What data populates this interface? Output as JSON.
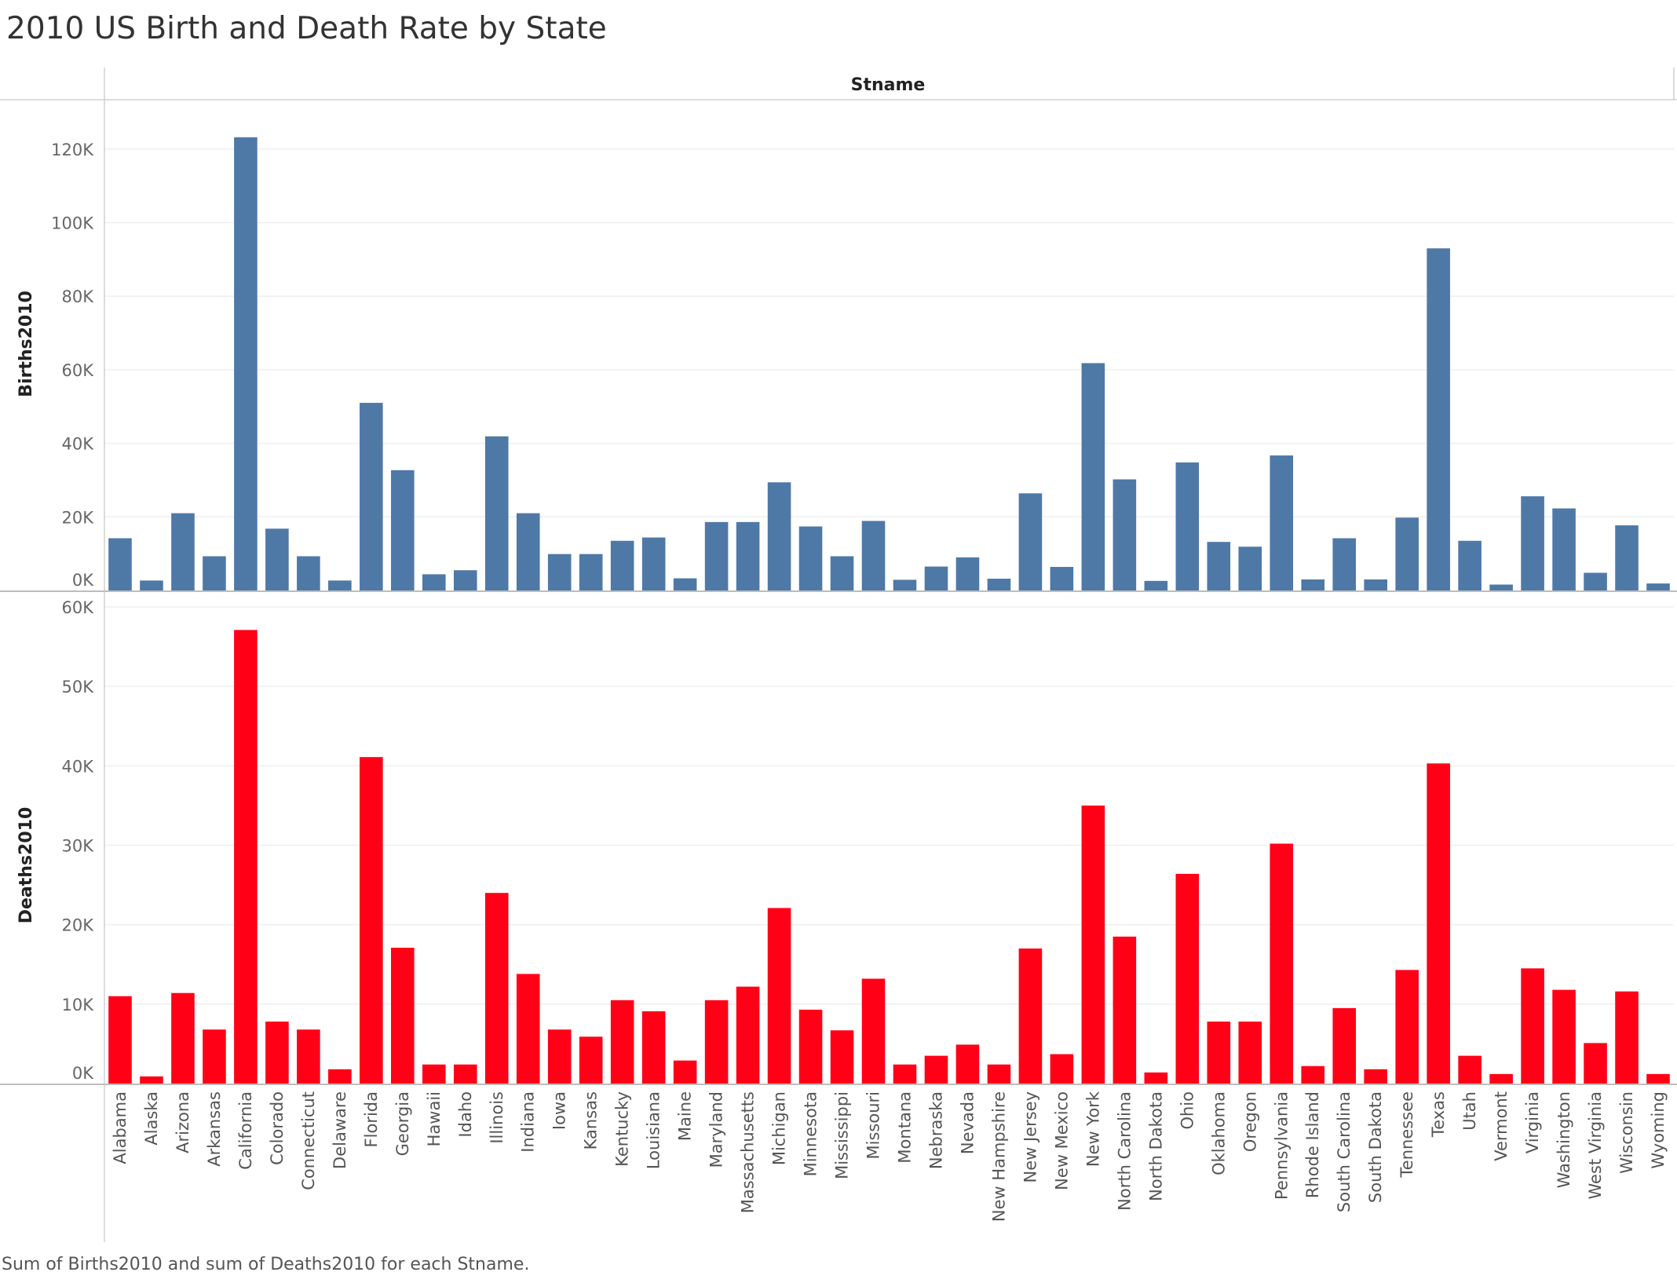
{
  "title": "2010 US Birth and Death Rate by State",
  "caption": "Sum of Births2010 and sum of Deaths2010 for each Stname.",
  "colors": {
    "births": "#4e79a7",
    "deaths": "#ff0017"
  },
  "chart_data": {
    "type": "bar",
    "column_header": "Stname",
    "categories": [
      "Alabama",
      "Alaska",
      "Arizona",
      "Arkansas",
      "California",
      "Colorado",
      "Connecticut",
      "Delaware",
      "Florida",
      "Georgia",
      "Hawaii",
      "Idaho",
      "Illinois",
      "Indiana",
      "Iowa",
      "Kansas",
      "Kentucky",
      "Louisiana",
      "Maine",
      "Maryland",
      "Massachusetts",
      "Michigan",
      "Minnesota",
      "Mississippi",
      "Missouri",
      "Montana",
      "Nebraska",
      "Nevada",
      "New Hampshire",
      "New Jersey",
      "New Mexico",
      "New York",
      "North Carolina",
      "North Dakota",
      "Ohio",
      "Oklahoma",
      "Oregon",
      "Pennsylvania",
      "Rhode Island",
      "South Carolina",
      "South Dakota",
      "Tennessee",
      "Texas",
      "Utah",
      "Vermont",
      "Virginia",
      "Washington",
      "West Virginia",
      "Wisconsin",
      "Wyoming"
    ],
    "series": [
      {
        "name": "Births2010",
        "ylabel": "Births2010",
        "ylim": [
          0,
          127000
        ],
        "ticks": [
          0,
          20000,
          40000,
          60000,
          80000,
          100000,
          120000
        ],
        "tick_labels": [
          "0K",
          "20K",
          "40K",
          "60K",
          "80K",
          "100K",
          "120K"
        ],
        "values": [
          14200,
          2700,
          21000,
          9300,
          123200,
          16800,
          9300,
          2700,
          51000,
          32700,
          4400,
          5500,
          41900,
          21000,
          9900,
          9900,
          13500,
          14400,
          3300,
          18600,
          18600,
          29400,
          17400,
          9300,
          18900,
          2900,
          6500,
          9000,
          3200,
          26400,
          6400,
          61800,
          30200,
          2600,
          34800,
          13200,
          11900,
          36700,
          3000,
          14200,
          3000,
          19800,
          93000,
          13500,
          1600,
          25600,
          22300,
          4800,
          17700,
          1900
        ]
      },
      {
        "name": "Deaths2010",
        "ylabel": "Deaths2010",
        "ylim": [
          0,
          60000
        ],
        "ticks": [
          0,
          10000,
          20000,
          30000,
          40000,
          50000,
          60000
        ],
        "tick_labels": [
          "0K",
          "10K",
          "20K",
          "30K",
          "40K",
          "50K",
          "60K"
        ],
        "values": [
          11000,
          900,
          11400,
          6800,
          57100,
          7800,
          6800,
          1800,
          41100,
          17100,
          2400,
          2400,
          24000,
          13800,
          6800,
          5900,
          10500,
          9100,
          2900,
          10500,
          12200,
          22100,
          9300,
          6700,
          13200,
          2400,
          3500,
          4900,
          2400,
          17000,
          3700,
          35000,
          18500,
          1400,
          26400,
          7800,
          7800,
          30200,
          2200,
          9500,
          1800,
          14300,
          40300,
          3500,
          1200,
          14500,
          11800,
          5100,
          11600,
          1200
        ]
      }
    ]
  }
}
